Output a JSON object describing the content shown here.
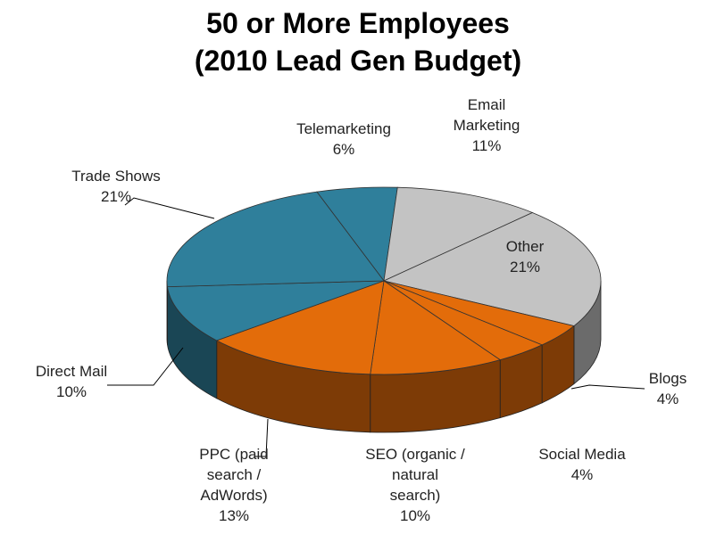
{
  "chart_data": {
    "type": "pie3d",
    "title": "50 or More Employees",
    "subtitle": "(2010 Lead Gen Budget)",
    "categories": [
      "Telemarketing",
      "Email Marketing",
      "Other",
      "Blogs",
      "Social Media",
      "SEO (organic / natural search)",
      "PPC (paid search / AdWords)",
      "Direct Mail",
      "Trade Shows"
    ],
    "values": [
      6,
      11,
      21,
      4,
      4,
      10,
      13,
      10,
      21
    ],
    "value_labels": [
      "6%",
      "11%",
      "21%",
      "4%",
      "4%",
      "10%",
      "13%",
      "10%",
      "21%"
    ],
    "colors": [
      "#2f7f9b",
      "#c3c3c3",
      "#c3c3c3",
      "#e36c0a",
      "#e36c0a",
      "#e36c0a",
      "#e36c0a",
      "#2f7f9b",
      "#2f7f9b"
    ]
  }
}
